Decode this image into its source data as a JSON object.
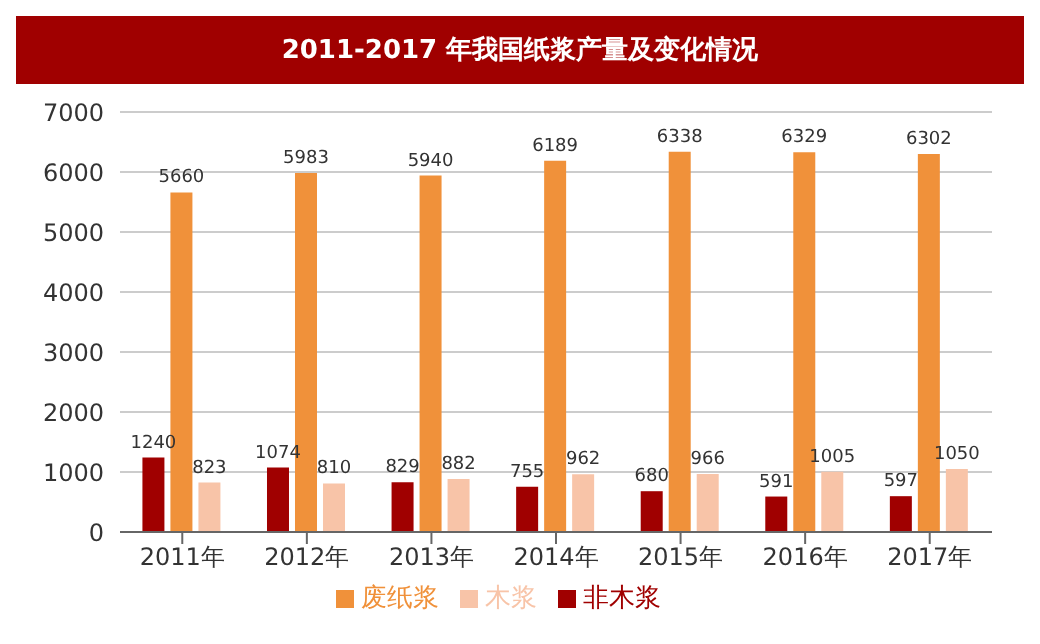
{
  "chart_data": {
    "type": "bar",
    "title": "2011-2017 年我国纸浆产量及变化情况",
    "categories": [
      "2011年",
      "2012年",
      "2013年",
      "2014年",
      "2015年",
      "2016年",
      "2017年"
    ],
    "series": [
      {
        "name": "非木浆",
        "color": "#a00000",
        "values": [
          1240,
          1074,
          829,
          755,
          680,
          591,
          597
        ]
      },
      {
        "name": "废纸浆",
        "color": "#f0913a",
        "values": [
          5660,
          5983,
          5940,
          6189,
          6338,
          6329,
          6302
        ]
      },
      {
        "name": "木浆",
        "color": "#f8c4a8",
        "values": [
          823,
          810,
          882,
          962,
          966,
          1005,
          1050
        ]
      }
    ],
    "ylim": [
      0,
      7000
    ],
    "yticks": [
      0,
      1000,
      2000,
      3000,
      4000,
      5000,
      6000,
      7000
    ],
    "grid": "y",
    "legend": "bottom",
    "data_labels": true
  }
}
